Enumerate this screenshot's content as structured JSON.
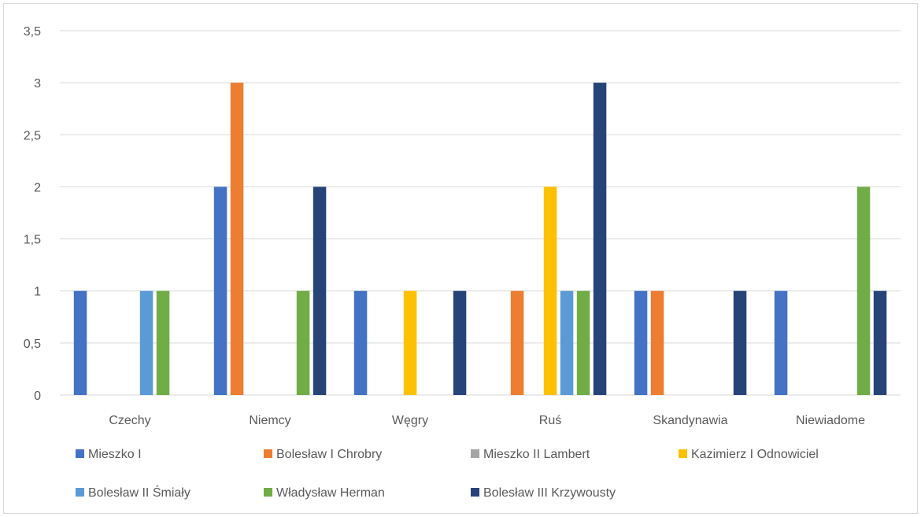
{
  "chart_data": {
    "type": "bar",
    "categories": [
      "Czechy",
      "Niemcy",
      "Węgry",
      "Ruś",
      "Skandynawia",
      "Niewiadome"
    ],
    "series": [
      {
        "name": "Mieszko I",
        "color": "#4472C4",
        "values": [
          1,
          2,
          1,
          0,
          1,
          1
        ]
      },
      {
        "name": "Bolesław I Chrobry",
        "color": "#ED7D31",
        "values": [
          0,
          3,
          0,
          1,
          1,
          0
        ]
      },
      {
        "name": "Mieszko II Lambert",
        "color": "#A5A5A5",
        "values": [
          0,
          0,
          0,
          0,
          0,
          0
        ]
      },
      {
        "name": "Kazimierz I Odnowiciel",
        "color": "#FFC000",
        "values": [
          0,
          0,
          1,
          2,
          0,
          0
        ]
      },
      {
        "name": "Bolesław II Śmiały",
        "color": "#5B9BD5",
        "values": [
          1,
          0,
          0,
          1,
          0,
          0
        ]
      },
      {
        "name": "Władysław Herman",
        "color": "#70AD47",
        "values": [
          1,
          1,
          0,
          1,
          0,
          2
        ]
      },
      {
        "name": "Bolesław III Krzywousty",
        "color": "#264478",
        "values": [
          0,
          2,
          1,
          3,
          1,
          1
        ]
      }
    ],
    "y_ticks": [
      "0",
      "0,5",
      "1",
      "1,5",
      "2",
      "2,5",
      "3",
      "3,5"
    ],
    "ylim": [
      0,
      3.5
    ],
    "grid": true,
    "legend": "bottom",
    "gridline_color": "#d9d9d9"
  }
}
